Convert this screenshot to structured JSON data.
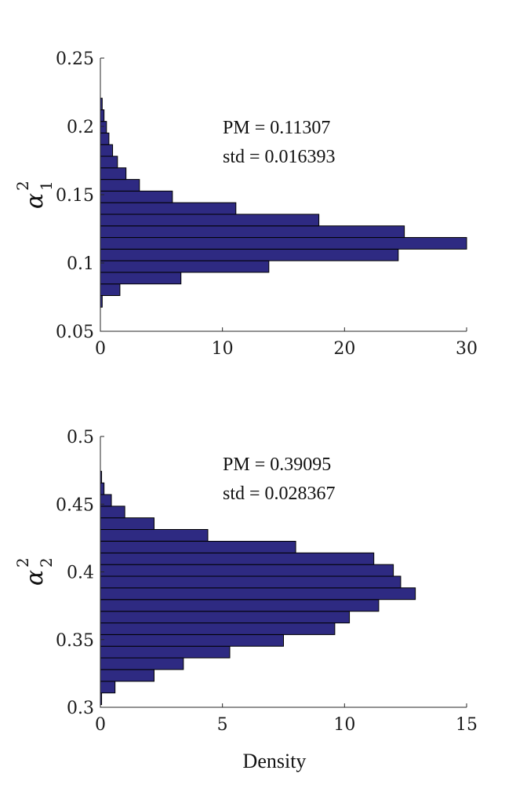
{
  "chart_data": [
    {
      "type": "bar",
      "orientation": "horizontal",
      "ylabel": {
        "main": "α",
        "superscript": "2",
        "subscript": "1"
      },
      "xlabel": "",
      "xlim": [
        0,
        30
      ],
      "ylim": [
        0.05,
        0.25
      ],
      "xticks": [
        0,
        10,
        20,
        30
      ],
      "xtick_labels": [
        "0",
        "10",
        "20",
        "30"
      ],
      "yticks": [
        0.05,
        0.1,
        0.15,
        0.2,
        0.25
      ],
      "ytick_labels": [
        "0.05",
        "0.1",
        "0.15",
        "0.2",
        "0.25"
      ],
      "bin_width": 0.0085,
      "bins": [
        {
          "center": 0.0719,
          "density": 0.15
        },
        {
          "center": 0.0804,
          "density": 1.6
        },
        {
          "center": 0.0889,
          "density": 6.6
        },
        {
          "center": 0.0974,
          "density": 13.8
        },
        {
          "center": 0.1059,
          "density": 24.4
        },
        {
          "center": 0.1144,
          "density": 30.0
        },
        {
          "center": 0.1229,
          "density": 24.9
        },
        {
          "center": 0.1314,
          "density": 17.9
        },
        {
          "center": 0.1399,
          "density": 11.1
        },
        {
          "center": 0.1484,
          "density": 5.9
        },
        {
          "center": 0.1569,
          "density": 3.2
        },
        {
          "center": 0.1654,
          "density": 2.1
        },
        {
          "center": 0.1739,
          "density": 1.4
        },
        {
          "center": 0.1824,
          "density": 1.0
        },
        {
          "center": 0.1909,
          "density": 0.7
        },
        {
          "center": 0.1994,
          "density": 0.5
        },
        {
          "center": 0.2079,
          "density": 0.3
        },
        {
          "center": 0.2164,
          "density": 0.15
        }
      ],
      "annotation": {
        "pm": "PM = 0.11307",
        "std": "std = 0.016393"
      },
      "bar_color": "#2e2a82",
      "grid": false
    },
    {
      "type": "bar",
      "orientation": "horizontal",
      "ylabel": {
        "main": "α",
        "superscript": "2",
        "subscript": "2"
      },
      "xlabel": "Density",
      "xlim": [
        0,
        15
      ],
      "ylim": [
        0.3,
        0.5
      ],
      "xticks": [
        0,
        5,
        10,
        15
      ],
      "xtick_labels": [
        "0",
        "5",
        "10",
        "15"
      ],
      "yticks": [
        0.3,
        0.35,
        0.4,
        0.45,
        0.5
      ],
      "ytick_labels": [
        "0.3",
        "0.35",
        "0.4",
        "0.45",
        "0.5"
      ],
      "bin_width": 0.00862,
      "bins": [
        {
          "center": 0.3063,
          "density": 0.05
        },
        {
          "center": 0.3149,
          "density": 0.6
        },
        {
          "center": 0.3235,
          "density": 2.2
        },
        {
          "center": 0.3322,
          "density": 3.4
        },
        {
          "center": 0.3408,
          "density": 5.3
        },
        {
          "center": 0.3494,
          "density": 7.5
        },
        {
          "center": 0.358,
          "density": 9.6
        },
        {
          "center": 0.3666,
          "density": 10.2
        },
        {
          "center": 0.3752,
          "density": 11.4
        },
        {
          "center": 0.3839,
          "density": 12.9
        },
        {
          "center": 0.3925,
          "density": 12.3
        },
        {
          "center": 0.4011,
          "density": 12.0
        },
        {
          "center": 0.4097,
          "density": 11.2
        },
        {
          "center": 0.4183,
          "density": 8.0
        },
        {
          "center": 0.427,
          "density": 4.4
        },
        {
          "center": 0.4356,
          "density": 2.2
        },
        {
          "center": 0.4442,
          "density": 1.0
        },
        {
          "center": 0.4528,
          "density": 0.45
        },
        {
          "center": 0.4614,
          "density": 0.15
        },
        {
          "center": 0.47,
          "density": 0.05
        }
      ],
      "annotation": {
        "pm": "PM = 0.39095",
        "std": "std = 0.028367"
      },
      "bar_color": "#2e2a82",
      "grid": false
    }
  ]
}
